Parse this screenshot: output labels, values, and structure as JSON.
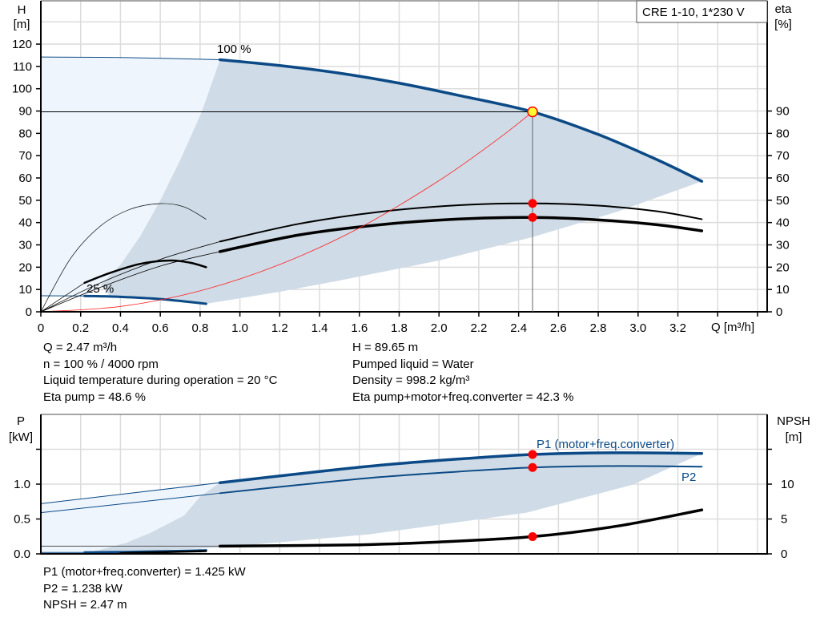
{
  "chart_data": [
    {
      "type": "line",
      "title": "CRE 1-10, 1*230 V",
      "xlabel": "Q [m³/h]",
      "ylabel": "H [m]",
      "ylabel_line1": "H",
      "ylabel_line2": "[m]",
      "y2label_line1": "eta",
      "y2label_line2": "[%]",
      "xlim": [
        0,
        3.65
      ],
      "ylim": [
        0,
        140
      ],
      "y2lim": [
        0,
        140
      ],
      "grid": true,
      "xticks": [
        "0",
        "0.2",
        "0.4",
        "0.6",
        "0.8",
        "1.0",
        "1.2",
        "1.4",
        "1.6",
        "1.8",
        "2.0",
        "2.2",
        "2.4",
        "2.6",
        "2.8",
        "3.0",
        "3.2"
      ],
      "yticks": [
        "0",
        "10",
        "20",
        "30",
        "40",
        "50",
        "60",
        "70",
        "80",
        "90",
        "100",
        "110",
        "120"
      ],
      "y2ticks": [
        "0",
        "10",
        "20",
        "30",
        "40",
        "50",
        "60",
        "70",
        "80",
        "90"
      ],
      "annotations": {
        "speed_max": "100 %",
        "speed_min": "25 %"
      },
      "colors": {
        "head": "#0b4a86",
        "eta": "#000000",
        "system": "#ff2020",
        "area_dark": "#cfdbe6",
        "area_light": "#eef5fd",
        "marker": "#ff0000",
        "duty_fill": "#ffff33"
      },
      "areas": [
        {
          "name": "area-light",
          "color": "#eef5fd",
          "points": [
            [
              0,
              114.2
            ],
            [
              0.9,
              113
            ],
            [
              0.81,
              90
            ],
            [
              0.7,
              68
            ],
            [
              0.6,
              50
            ],
            [
              0.5,
              34
            ],
            [
              0.4,
              21
            ],
            [
              0.3,
              12
            ],
            [
              0.22,
              7
            ],
            [
              0,
              7.2
            ]
          ]
        },
        {
          "name": "area-dark",
          "color": "#cfdbe6",
          "points": [
            [
              0.9,
              113
            ],
            [
              1.2,
              110.4
            ],
            [
              1.5,
              107
            ],
            [
              1.8,
              102.5
            ],
            [
              2.1,
              97
            ],
            [
              2.47,
              89.65
            ],
            [
              2.8,
              79.5
            ],
            [
              3.1,
              68
            ],
            [
              3.32,
              58.5
            ],
            [
              2.9,
              45
            ],
            [
              2.47,
              33.5
            ],
            [
              2.0,
              23
            ],
            [
              1.5,
              14
            ],
            [
              1.2,
              9
            ],
            [
              0.83,
              3.6
            ],
            [
              0.6,
              5.7
            ],
            [
              0.35,
              6.7
            ],
            [
              0.3,
              12
            ],
            [
              0.4,
              21
            ],
            [
              0.5,
              34
            ],
            [
              0.6,
              50
            ],
            [
              0.7,
              68
            ],
            [
              0.81,
              90
            ]
          ]
        }
      ],
      "series": [
        {
          "id": "head-100-thin",
          "axis": "y",
          "color": "#0b4a86",
          "width": 1,
          "points": [
            [
              0,
              114.2
            ],
            [
              0.4,
              114
            ],
            [
              0.9,
              113
            ]
          ]
        },
        {
          "id": "head-100",
          "axis": "y",
          "color": "#0b4a86",
          "width": 3.5,
          "points": [
            [
              0.9,
              113
            ],
            [
              1.2,
              110.4
            ],
            [
              1.5,
              107
            ],
            [
              1.8,
              102.5
            ],
            [
              2.1,
              97
            ],
            [
              2.47,
              89.65
            ],
            [
              2.8,
              79.5
            ],
            [
              3.1,
              68
            ],
            [
              3.32,
              58.5
            ]
          ]
        },
        {
          "id": "head-25-thin",
          "axis": "y",
          "color": "#0b4a86",
          "width": 1,
          "points": [
            [
              0,
              7.2
            ],
            [
              0.22,
              7.1
            ]
          ]
        },
        {
          "id": "head-25",
          "axis": "y",
          "color": "#0b4a86",
          "width": 3,
          "points": [
            [
              0.22,
              7.1
            ],
            [
              0.4,
              6.7
            ],
            [
              0.6,
              5.7
            ],
            [
              0.83,
              3.6
            ]
          ]
        },
        {
          "id": "eta-pump-100-thin",
          "axis": "y2",
          "color": "#000000",
          "width": 0.8,
          "points": [
            [
              0,
              0
            ],
            [
              0.3,
              13
            ],
            [
              0.6,
              23.5
            ],
            [
              0.9,
              31.5
            ]
          ]
        },
        {
          "id": "eta-pump-100",
          "axis": "y2",
          "color": "#000000",
          "width": 2,
          "points": [
            [
              0.9,
              31.5
            ],
            [
              1.3,
              39.5
            ],
            [
              1.7,
              44.8
            ],
            [
              2.1,
              47.8
            ],
            [
              2.47,
              48.6
            ],
            [
              2.8,
              47.6
            ],
            [
              3.1,
              45
            ],
            [
              3.32,
              41.5
            ]
          ]
        },
        {
          "id": "eta-total-100-thin",
          "axis": "y2",
          "color": "#000000",
          "width": 0.8,
          "points": [
            [
              0,
              0
            ],
            [
              0.3,
              11
            ],
            [
              0.6,
              20.5
            ],
            [
              0.9,
              27
            ]
          ]
        },
        {
          "id": "eta-total-100",
          "axis": "y2",
          "color": "#000000",
          "width": 3.5,
          "points": [
            [
              0.9,
              27
            ],
            [
              1.3,
              34.5
            ],
            [
              1.7,
              39
            ],
            [
              2.1,
              41.6
            ],
            [
              2.47,
              42.3
            ],
            [
              2.8,
              41.2
            ],
            [
              3.1,
              39
            ],
            [
              3.32,
              36.3
            ]
          ]
        },
        {
          "id": "eta-pump-25-thin",
          "axis": "y2",
          "color": "#000000",
          "width": 0.7,
          "points": [
            [
              0,
              0
            ],
            [
              0.15,
              24
            ],
            [
              0.3,
              38.5
            ],
            [
              0.45,
              46
            ],
            [
              0.6,
              48.5
            ],
            [
              0.72,
              47
            ],
            [
              0.83,
              41.5
            ]
          ]
        },
        {
          "id": "eta-total-25-thin",
          "axis": "y2",
          "color": "#000000",
          "width": 0.7,
          "points": [
            [
              0,
              0
            ],
            [
              0.22,
              13
            ]
          ]
        },
        {
          "id": "eta-total-25",
          "axis": "y2",
          "color": "#000000",
          "width": 2.5,
          "points": [
            [
              0.22,
              13
            ],
            [
              0.35,
              17.5
            ],
            [
              0.5,
              21.5
            ],
            [
              0.65,
              23
            ],
            [
              0.75,
              22
            ],
            [
              0.83,
              20
            ]
          ]
        },
        {
          "id": "system-curve",
          "axis": "y",
          "color": "#ff2020",
          "width": 0.8,
          "points": [
            [
              0,
              0
            ],
            [
              0.4,
              2.4
            ],
            [
              0.8,
              9.4
            ],
            [
              1.2,
              21.2
            ],
            [
              1.6,
              37.6
            ],
            [
              2.0,
              58.8
            ],
            [
              2.3,
              77.7
            ],
            [
              2.47,
              89.65
            ]
          ]
        }
      ],
      "duty_point": {
        "q": 2.47,
        "h": 89.65,
        "eta_pump": 48.6,
        "eta_total": 42.3
      }
    },
    {
      "type": "line",
      "xlabel": "",
      "ylabel_line1": "P",
      "ylabel_line2": "[kW]",
      "y2label_line1": "NPSH",
      "y2label_line2": "[m]",
      "xlim": [
        0,
        3.65
      ],
      "ylim": [
        0,
        2.0
      ],
      "y2lim": [
        0,
        20
      ],
      "grid": true,
      "yticks": [
        "0.0",
        "0.5",
        "1.0",
        ""
      ],
      "y2ticks": [
        "0",
        "5",
        "10",
        ""
      ],
      "labels": {
        "p1": "P1 (motor+freq.converter)",
        "p2": "P2"
      },
      "areas": [
        {
          "name": "area-light",
          "color": "#eef5fd",
          "points": [
            [
              0,
              0.72
            ],
            [
              0.9,
              1.02
            ],
            [
              0.8,
              0.82
            ],
            [
              0.72,
              0.55
            ],
            [
              0.55,
              0.3
            ],
            [
              0.43,
              0.16
            ],
            [
              0.3,
              0.06
            ],
            [
              0.2,
              0.0
            ],
            [
              0,
              0.0
            ]
          ]
        },
        {
          "name": "area-dark",
          "color": "#cfdbe6",
          "points": [
            [
              0.9,
              1.02
            ],
            [
              1.3,
              1.15
            ],
            [
              1.7,
              1.27
            ],
            [
              2.1,
              1.36
            ],
            [
              2.47,
              1.425
            ],
            [
              2.9,
              1.45
            ],
            [
              3.32,
              1.44
            ],
            [
              2.97,
              0.99
            ],
            [
              2.44,
              0.59
            ],
            [
              1.65,
              0.28
            ],
            [
              0.9,
              0.09
            ],
            [
              0.2,
              0.0
            ],
            [
              0.3,
              0.06
            ],
            [
              0.43,
              0.16
            ],
            [
              0.55,
              0.3
            ],
            [
              0.72,
              0.55
            ],
            [
              0.8,
              0.82
            ]
          ]
        }
      ],
      "series": [
        {
          "id": "p1-100-thin",
          "axis": "y",
          "color": "#0b4a86",
          "width": 1,
          "points": [
            [
              0,
              0.72
            ],
            [
              0.9,
              1.02
            ]
          ]
        },
        {
          "id": "p1-100",
          "axis": "y",
          "color": "#0b4a86",
          "width": 3.5,
          "points": [
            [
              0.9,
              1.02
            ],
            [
              1.3,
              1.15
            ],
            [
              1.7,
              1.27
            ],
            [
              2.1,
              1.36
            ],
            [
              2.47,
              1.425
            ],
            [
              2.9,
              1.45
            ],
            [
              3.32,
              1.44
            ]
          ]
        },
        {
          "id": "p2-100-thin",
          "axis": "y",
          "color": "#0b4a86",
          "width": 1,
          "points": [
            [
              0,
              0.59
            ],
            [
              0.9,
              0.87
            ]
          ]
        },
        {
          "id": "p2-100",
          "axis": "y",
          "color": "#0b4a86",
          "width": 2,
          "points": [
            [
              0.9,
              0.87
            ],
            [
              1.3,
              0.99
            ],
            [
              1.7,
              1.1
            ],
            [
              2.1,
              1.18
            ],
            [
              2.47,
              1.238
            ],
            [
              2.9,
              1.26
            ],
            [
              3.32,
              1.25
            ]
          ]
        },
        {
          "id": "p-25-thin",
          "axis": "y",
          "color": "#0b4a86",
          "width": 1,
          "points": [
            [
              0,
              0.02
            ],
            [
              0.22,
              0.02
            ]
          ]
        },
        {
          "id": "p-25",
          "axis": "y",
          "color": "#0b4a86",
          "width": 3,
          "points": [
            [
              0.22,
              0.02
            ],
            [
              0.5,
              0.03
            ],
            [
              0.83,
              0.05
            ]
          ]
        },
        {
          "id": "npsh-25",
          "axis": "y2",
          "color": "#000000",
          "width": 2.5,
          "points": [
            [
              0.4,
              0.1
            ],
            [
              0.83,
              0.4
            ]
          ]
        },
        {
          "id": "npsh-100-thin",
          "axis": "y2",
          "color": "#555555",
          "width": 1,
          "points": [
            [
              0,
              1.1
            ],
            [
              0.9,
              1.1
            ]
          ]
        },
        {
          "id": "npsh-100",
          "axis": "y2",
          "color": "#000000",
          "width": 3.5,
          "points": [
            [
              0.9,
              1.1
            ],
            [
              1.6,
              1.3
            ],
            [
              2.0,
              1.7
            ],
            [
              2.47,
              2.47
            ],
            [
              2.9,
              4.0
            ],
            [
              3.32,
              6.3
            ]
          ]
        }
      ],
      "duty_point": {
        "q": 2.47,
        "p1": 1.425,
        "p2": 1.238,
        "npsh": 2.47
      }
    }
  ],
  "info_top": {
    "left": [
      "Q = 2.47 m³/h",
      "n = 100 % / 4000 rpm",
      "Liquid temperature during operation = 20 °C",
      "Eta pump = 48.6 %"
    ],
    "right": [
      "H = 89.65 m",
      "Pumped liquid = Water",
      "Density = 998.2 kg/m³",
      "Eta pump+motor+freq.converter = 42.3 %"
    ]
  },
  "info_bottom": [
    "P1 (motor+freq.converter) = 1.425 kW",
    "P2 = 1.238 kW",
    "NPSH = 2.47 m"
  ]
}
